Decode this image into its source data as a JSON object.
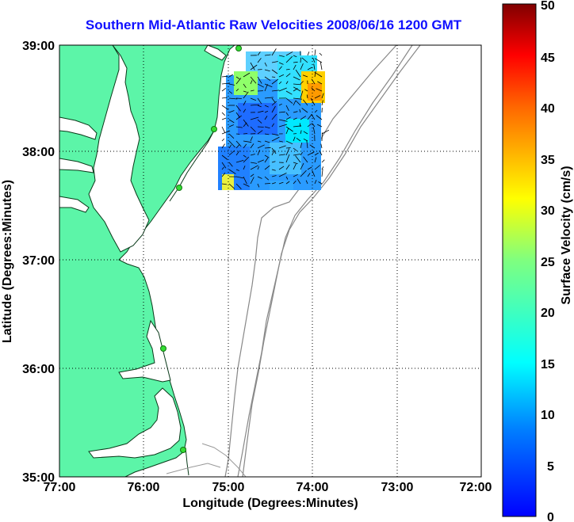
{
  "title": "Southern Mid-Atlantic Raw Velocities 2008/06/16 1200 GMT",
  "x_axis": {
    "label": "Longitude (Degrees:Minutes)",
    "ticks": [
      "77:00",
      "76:00",
      "75:00",
      "74:00",
      "73:00",
      "72:00"
    ]
  },
  "y_axis": {
    "label": "Latitude (Degrees:Minutes)",
    "ticks": [
      "39:00",
      "38:00",
      "37:00",
      "36:00",
      "35:00"
    ]
  },
  "colorbar": {
    "label": "Surface Velocity (cm/s)",
    "ticks": [
      "50",
      "45",
      "40",
      "35",
      "30",
      "25",
      "20",
      "15",
      "10",
      "5",
      "0"
    ],
    "range": [
      0,
      50
    ],
    "colormap": "jet"
  },
  "chart_data": {
    "type": "map",
    "title": "Southern Mid-Atlantic Raw Velocities 2008/06/16 1200 GMT",
    "xlabel": "Longitude (Degrees:Minutes)",
    "ylabel": "Latitude (Degrees:Minutes)",
    "xlim": [
      -77,
      -72
    ],
    "ylim": [
      35,
      39
    ],
    "grid": true,
    "land_color": "#5cf5a8",
    "ocean_color": "#ffffff",
    "station_color": "#33dd33",
    "stations": [
      {
        "lon": -75.12,
        "lat": 38.98
      },
      {
        "lon": -75.17,
        "lat": 38.22
      },
      {
        "lon": -75.54,
        "lat": 37.68
      },
      {
        "lon": -75.69,
        "lat": 36.17
      },
      {
        "lon": -75.46,
        "lat": 35.25
      }
    ]
  }
}
